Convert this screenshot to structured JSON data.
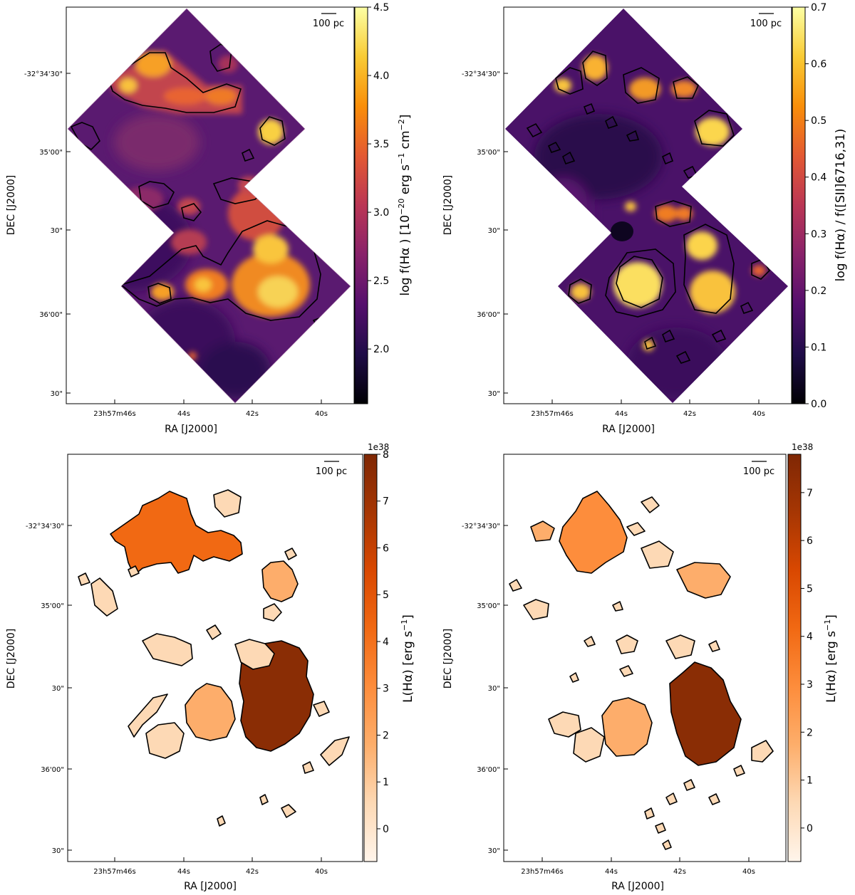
{
  "figure_description": "Four-panel figure: H-alpha flux map, H-alpha/[SII] ratio map, and two H II region luminosity segmentation maps",
  "colors": {
    "inferno": [
      "#000004",
      "#1f0c48",
      "#550f6d",
      "#88226a",
      "#ba3655",
      "#e35933",
      "#f98e09",
      "#f9cb35",
      "#fcffa4"
    ],
    "oranges": [
      "#fff5eb",
      "#fdd9b5",
      "#fdae6b",
      "#fd8d3c",
      "#f16913",
      "#d94801",
      "#a63603",
      "#7f2704"
    ]
  },
  "chart_data": [
    {
      "type": "heatmap",
      "panel": "top-left",
      "title": "",
      "xlabel": "RA [J2000]",
      "ylabel": "DEC [J2000]",
      "x_ticks": [
        "23h57m46s",
        "44s",
        "42s",
        "40s"
      ],
      "y_ticks": [
        "-32°34'30\"",
        "35'00\"",
        "30\"",
        "36'00\"",
        "30\""
      ],
      "scalebar_label": "100 pc",
      "colorbar": {
        "colormap": "inferno",
        "label": "log f(Hα ) [10^-20 erg s^-1 cm^-2]",
        "range": [
          1.6,
          4.5
        ],
        "ticks": [
          "2.0",
          "2.5",
          "3.0",
          "3.5",
          "4.0",
          "4.5"
        ],
        "tick_values": [
          2.0,
          2.5,
          3.0,
          3.5,
          4.0,
          4.5
        ]
      }
    },
    {
      "type": "heatmap",
      "panel": "top-right",
      "title": "",
      "xlabel": "RA [J2000]",
      "ylabel": "DEC [J2000]",
      "x_ticks": [
        "23h57m46s",
        "44s",
        "42s",
        "40s"
      ],
      "y_ticks": [
        "-32°34'30\"",
        "35'00\"",
        "30\"",
        "36'00\"",
        "30\""
      ],
      "scalebar_label": "100 pc",
      "colorbar": {
        "colormap": "inferno",
        "label": "log f(Hα) / f([SII]6716,31)",
        "range": [
          0.0,
          0.7
        ],
        "ticks": [
          "0.0",
          "0.1",
          "0.2",
          "0.3",
          "0.4",
          "0.5",
          "0.6",
          "0.7"
        ],
        "tick_values": [
          0.0,
          0.1,
          0.2,
          0.3,
          0.4,
          0.5,
          0.6,
          0.7
        ]
      }
    },
    {
      "type": "heatmap",
      "panel": "bottom-left",
      "title": "",
      "xlabel": "RA [J2000]",
      "ylabel": "DEC [J2000]",
      "x_ticks": [
        "23h57m46s",
        "44s",
        "42s",
        "40s"
      ],
      "y_ticks": [
        "-32°34'30\"",
        "35'00\"",
        "30\"",
        "36'00\"",
        "30\""
      ],
      "scalebar_label": "100 pc",
      "colorbar": {
        "colormap": "oranges",
        "label": "L(Hα) [erg s^-1]",
        "offset_text": "1e38",
        "range": [
          -0.7,
          8.0
        ],
        "ticks": [
          "0",
          "1",
          "2",
          "3",
          "4",
          "5",
          "6",
          "7",
          "8"
        ],
        "tick_values": [
          0,
          1,
          2,
          3,
          4,
          5,
          6,
          7,
          8
        ]
      }
    },
    {
      "type": "heatmap",
      "panel": "bottom-right",
      "title": "",
      "xlabel": "RA [J2000]",
      "ylabel": "DEC [J2000]",
      "x_ticks": [
        "23h57m46s",
        "44s",
        "42s",
        "40s"
      ],
      "y_ticks": [
        "-32°34'30\"",
        "35'00\"",
        "30\"",
        "36'00\"",
        "30\""
      ],
      "scalebar_label": "100 pc",
      "colorbar": {
        "colormap": "oranges",
        "label": "L(Hα) [erg s^-1]",
        "offset_text": "1e38",
        "range": [
          -0.7,
          7.8
        ],
        "ticks": [
          "0",
          "1",
          "2",
          "3",
          "4",
          "5",
          "6",
          "7"
        ],
        "tick_values": [
          0,
          1,
          2,
          3,
          4,
          5,
          6,
          7
        ]
      }
    }
  ]
}
